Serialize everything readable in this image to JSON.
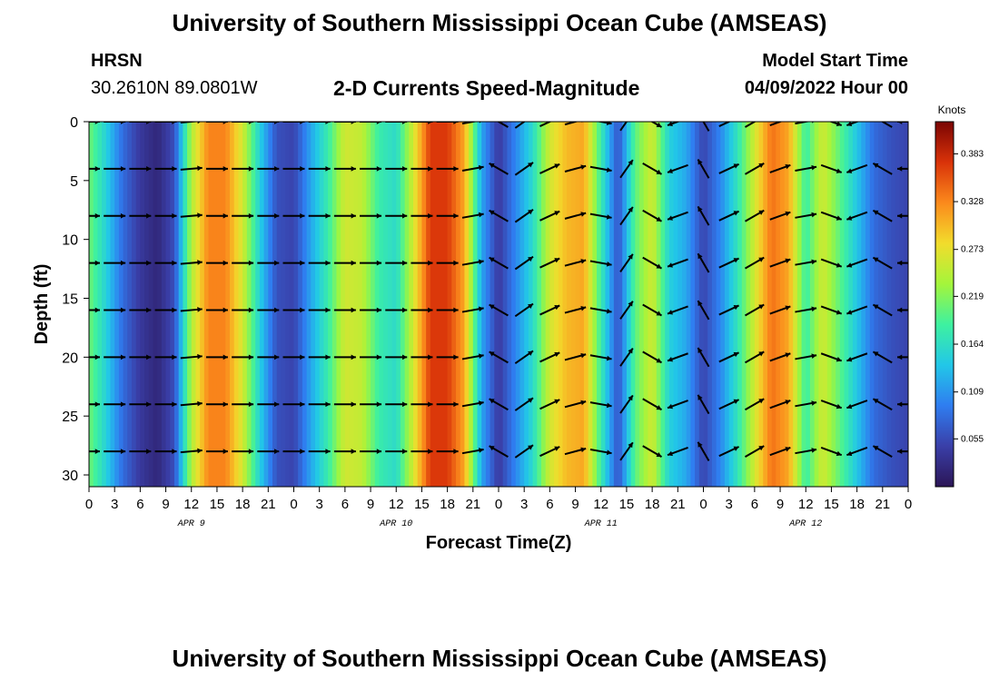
{
  "header": {
    "title": "University of Southern Mississippi Ocean Cube (AMSEAS)",
    "station": "HRSN",
    "coordinates": "30.2610N  89.0801W",
    "plot_title": "2-D Currents Speed-Magnitude",
    "model_start_label": "Model Start Time",
    "model_start_value": "04/09/2022 Hour 00"
  },
  "footer": {
    "title": "University of Southern Mississippi Ocean Cube (AMSEAS)"
  },
  "chart_data": {
    "type": "heatmap",
    "title": "2-D Currents Speed-Magnitude",
    "xlabel": "Forecast Time(Z)",
    "ylabel": "Depth (ft)",
    "x_range_hours": [
      0,
      96
    ],
    "ylim": [
      0,
      31
    ],
    "y_inverted": true,
    "x_ticks": [
      {
        "h": 0,
        "label": "0"
      },
      {
        "h": 3,
        "label": "3"
      },
      {
        "h": 6,
        "label": "6"
      },
      {
        "h": 9,
        "label": "9"
      },
      {
        "h": 12,
        "label": "12"
      },
      {
        "h": 15,
        "label": "15"
      },
      {
        "h": 18,
        "label": "18"
      },
      {
        "h": 21,
        "label": "21"
      },
      {
        "h": 24,
        "label": "0"
      },
      {
        "h": 27,
        "label": "3"
      },
      {
        "h": 30,
        "label": "6"
      },
      {
        "h": 33,
        "label": "9"
      },
      {
        "h": 36,
        "label": "12"
      },
      {
        "h": 39,
        "label": "15"
      },
      {
        "h": 42,
        "label": "18"
      },
      {
        "h": 45,
        "label": "21"
      },
      {
        "h": 48,
        "label": "0"
      },
      {
        "h": 51,
        "label": "3"
      },
      {
        "h": 54,
        "label": "6"
      },
      {
        "h": 57,
        "label": "9"
      },
      {
        "h": 60,
        "label": "12"
      },
      {
        "h": 63,
        "label": "15"
      },
      {
        "h": 66,
        "label": "18"
      },
      {
        "h": 69,
        "label": "21"
      },
      {
        "h": 72,
        "label": "0"
      },
      {
        "h": 75,
        "label": "3"
      },
      {
        "h": 78,
        "label": "6"
      },
      {
        "h": 81,
        "label": "9"
      },
      {
        "h": 84,
        "label": "12"
      },
      {
        "h": 87,
        "label": "15"
      },
      {
        "h": 90,
        "label": "18"
      },
      {
        "h": 93,
        "label": "21"
      },
      {
        "h": 96,
        "label": "0"
      }
    ],
    "day_labels": [
      {
        "h": 12,
        "label": "APR 9"
      },
      {
        "h": 36,
        "label": "APR 10"
      },
      {
        "h": 60,
        "label": "APR 11"
      },
      {
        "h": 84,
        "label": "APR 12"
      }
    ],
    "y_ticks": [
      0,
      5,
      10,
      15,
      20,
      25,
      30
    ],
    "colorbar": {
      "label": "Knots",
      "range": [
        0,
        0.42
      ],
      "ticks": [
        "0.383",
        "0.328",
        "0.273",
        "0.219",
        "0.164",
        "0.109",
        "0.055"
      ],
      "tick_values": [
        0.383,
        0.328,
        0.273,
        0.219,
        0.164,
        0.109,
        0.055
      ],
      "colors": [
        "#2b1556",
        "#3a3fa8",
        "#2f7df0",
        "#22c7e8",
        "#3ef1a0",
        "#a4f53b",
        "#f2dc2c",
        "#fb8a1c",
        "#d93209",
        "#7a0403"
      ]
    },
    "speed_profile": [
      {
        "h": 0,
        "v": 0.21
      },
      {
        "h": 2,
        "v": 0.15
      },
      {
        "h": 4,
        "v": 0.08
      },
      {
        "h": 6,
        "v": 0.04
      },
      {
        "h": 8,
        "v": 0.02
      },
      {
        "h": 10,
        "v": 0.06
      },
      {
        "h": 12,
        "v": 0.24
      },
      {
        "h": 14,
        "v": 0.33
      },
      {
        "h": 16,
        "v": 0.33
      },
      {
        "h": 18,
        "v": 0.26
      },
      {
        "h": 20,
        "v": 0.15
      },
      {
        "h": 22,
        "v": 0.06
      },
      {
        "h": 24,
        "v": 0.05
      },
      {
        "h": 26,
        "v": 0.12
      },
      {
        "h": 28,
        "v": 0.18
      },
      {
        "h": 30,
        "v": 0.26
      },
      {
        "h": 32,
        "v": 0.25
      },
      {
        "h": 34,
        "v": 0.18
      },
      {
        "h": 36,
        "v": 0.16
      },
      {
        "h": 38,
        "v": 0.26
      },
      {
        "h": 40,
        "v": 0.37
      },
      {
        "h": 42,
        "v": 0.37
      },
      {
        "h": 44,
        "v": 0.31
      },
      {
        "h": 46,
        "v": 0.12
      },
      {
        "h": 48,
        "v": 0.04
      },
      {
        "h": 50,
        "v": 0.1
      },
      {
        "h": 52,
        "v": 0.16
      },
      {
        "h": 54,
        "v": 0.26
      },
      {
        "h": 56,
        "v": 0.3
      },
      {
        "h": 58,
        "v": 0.31
      },
      {
        "h": 60,
        "v": 0.18
      },
      {
        "h": 62,
        "v": 0.06
      },
      {
        "h": 64,
        "v": 0.2
      },
      {
        "h": 66,
        "v": 0.26
      },
      {
        "h": 68,
        "v": 0.15
      },
      {
        "h": 70,
        "v": 0.12
      },
      {
        "h": 72,
        "v": 0.05
      },
      {
        "h": 74,
        "v": 0.1
      },
      {
        "h": 76,
        "v": 0.17
      },
      {
        "h": 78,
        "v": 0.26
      },
      {
        "h": 80,
        "v": 0.34
      },
      {
        "h": 82,
        "v": 0.31
      },
      {
        "h": 84,
        "v": 0.18
      },
      {
        "h": 86,
        "v": 0.26
      },
      {
        "h": 88,
        "v": 0.2
      },
      {
        "h": 90,
        "v": 0.14
      },
      {
        "h": 92,
        "v": 0.08
      },
      {
        "h": 94,
        "v": 0.06
      },
      {
        "h": 96,
        "v": 0.05
      }
    ],
    "vector_depths": [
      0,
      4,
      8,
      12,
      16,
      20,
      24,
      28
    ],
    "vector_hours": [
      0,
      3,
      6,
      9,
      12,
      15,
      18,
      21,
      24,
      27,
      30,
      33,
      36,
      39,
      42,
      45,
      48,
      51,
      54,
      57,
      60,
      63,
      66,
      69,
      72,
      75,
      78,
      81,
      84,
      87,
      90,
      93,
      96
    ],
    "vector_directions_deg": [
      0,
      0,
      0,
      0,
      5,
      0,
      0,
      0,
      0,
      0,
      0,
      0,
      0,
      0,
      0,
      10,
      150,
      35,
      25,
      15,
      350,
      55,
      330,
      200,
      120,
      25,
      30,
      20,
      10,
      340,
      200,
      150,
      180
    ]
  }
}
